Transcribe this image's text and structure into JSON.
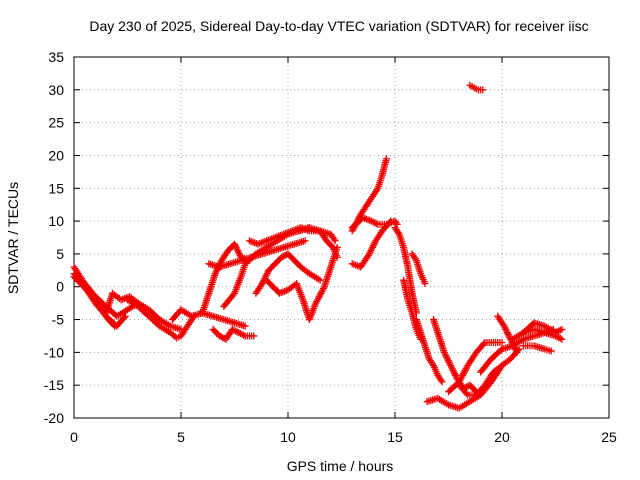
{
  "chart_data": {
    "type": "scatter",
    "title": "Day 230 of 2025, Sidereal Day-to-day VTEC variation (SDTVAR) for receiver iisc",
    "xlabel": "GPS time / hours",
    "ylabel": "SDTVAR / TECUs",
    "xlim": [
      0,
      25
    ],
    "ylim": [
      -20,
      35
    ],
    "x_ticks": [
      0,
      5,
      10,
      15,
      20,
      25
    ],
    "y_ticks": [
      -20,
      -15,
      -10,
      -5,
      0,
      5,
      10,
      15,
      20,
      25,
      30,
      35
    ],
    "x_tick_labels": [
      "0",
      "5",
      "10",
      "15",
      "20",
      "25"
    ],
    "y_tick_labels": [
      "-20",
      "-15",
      "-10",
      "-5",
      "0",
      "5",
      "10",
      "15",
      "20",
      "25",
      "30",
      "35"
    ],
    "grid": true,
    "marker": "+",
    "color": "#ee0000",
    "series": [
      {
        "x": [
          0.0,
          0.5,
          1.0,
          1.5,
          2.0,
          2.5,
          3.0
        ],
        "y": [
          3.0,
          0.5,
          -1.5,
          -3.0,
          -4.5,
          -3.5,
          -2.5
        ]
      },
      {
        "x": [
          0.0,
          0.5,
          1.0,
          1.5,
          2.0,
          2.4
        ],
        "y": [
          2.0,
          0.0,
          -2.5,
          -4.5,
          -6.0,
          -4.5
        ]
      },
      {
        "x": [
          0.0,
          0.6,
          1.2,
          1.6,
          1.9
        ],
        "y": [
          1.5,
          -0.5,
          -3.0,
          -5.0,
          -6.0
        ]
      },
      {
        "x": [
          1.5,
          1.8,
          2.2,
          2.6,
          3.0,
          3.5,
          4.0,
          4.5,
          5.0
        ],
        "y": [
          -4.0,
          -1.0,
          -2.0,
          -1.5,
          -2.5,
          -3.5,
          -5.0,
          -6.0,
          -6.5
        ]
      },
      {
        "x": [
          2.5,
          3.0,
          3.5,
          4.0,
          4.5,
          4.8,
          5.0,
          5.3,
          5.6
        ],
        "y": [
          -2.0,
          -3.0,
          -4.5,
          -6.0,
          -7.0,
          -7.8,
          -7.5,
          -6.0,
          -4.5
        ]
      },
      {
        "x": [
          4.6,
          5.0,
          5.5,
          6.0,
          6.5,
          7.0,
          7.5,
          8.0
        ],
        "y": [
          -5.0,
          -3.5,
          -4.5,
          -4.0,
          -4.5,
          -5.0,
          -5.5,
          -6.0
        ]
      },
      {
        "x": [
          6.5,
          6.8,
          7.1,
          7.4,
          7.7,
          8.0,
          8.4
        ],
        "y": [
          -6.5,
          -7.5,
          -8.0,
          -6.5,
          -7.0,
          -7.5,
          -7.5
        ]
      },
      {
        "x": [
          6.0,
          6.3,
          6.6,
          6.9,
          7.2,
          7.5,
          7.8,
          8.2
        ],
        "y": [
          -4.0,
          -1.0,
          2.0,
          4.0,
          5.5,
          6.5,
          4.5,
          4.0
        ]
      },
      {
        "x": [
          6.3,
          6.8,
          7.3,
          7.8,
          8.3,
          8.8,
          9.3,
          9.8,
          10.3,
          10.8
        ],
        "y": [
          3.5,
          3.0,
          3.5,
          4.0,
          4.5,
          5.0,
          5.5,
          6.0,
          6.5,
          7.0
        ]
      },
      {
        "x": [
          7.0,
          7.5,
          7.8,
          8.0,
          8.5,
          9.0,
          9.5,
          10.0,
          10.5,
          11.0
        ],
        "y": [
          -3.0,
          -1.0,
          1.5,
          3.5,
          5.0,
          6.0,
          7.0,
          8.0,
          8.5,
          9.0
        ]
      },
      {
        "x": [
          8.2,
          8.6,
          9.0,
          9.4,
          9.8,
          10.2,
          10.6,
          11.0,
          11.5,
          12.0,
          12.2
        ],
        "y": [
          7.0,
          6.5,
          7.0,
          7.5,
          8.0,
          8.5,
          9.0,
          8.5,
          8.5,
          8.0,
          7.0
        ]
      },
      {
        "x": [
          8.5,
          8.8,
          9.1,
          9.4,
          9.7,
          10.0,
          10.3,
          10.6,
          11.0,
          11.5
        ],
        "y": [
          -1.0,
          0.5,
          2.5,
          3.5,
          4.5,
          5.0,
          4.0,
          3.0,
          2.0,
          1.0
        ]
      },
      {
        "x": [
          9.0,
          9.3,
          9.6,
          10.0,
          10.4,
          10.7,
          11.0,
          11.3,
          11.7,
          12.1,
          12.3
        ],
        "y": [
          1.0,
          0.0,
          -1.0,
          -0.5,
          0.5,
          -2.0,
          -5.0,
          -2.5,
          0.0,
          4.0,
          6.0
        ]
      },
      {
        "x": [
          10.5,
          11.0,
          11.5,
          11.8,
          12.1,
          12.3
        ],
        "y": [
          8.5,
          9.0,
          8.5,
          7.0,
          6.0,
          4.5
        ]
      },
      {
        "x": [
          13.0,
          13.4,
          13.8,
          14.2,
          14.4,
          14.6
        ],
        "y": [
          8.5,
          11.0,
          13.0,
          15.0,
          17.0,
          19.5
        ]
      },
      {
        "x": [
          13.0,
          13.5,
          13.9,
          14.2,
          14.6,
          15.0,
          15.1
        ],
        "y": [
          9.0,
          10.5,
          10.0,
          9.5,
          9.5,
          10.0,
          9.5
        ]
      },
      {
        "x": [
          13.0,
          13.4,
          13.8,
          14.1,
          14.4,
          14.8
        ],
        "y": [
          3.5,
          3.0,
          5.0,
          7.0,
          8.5,
          10.0
        ]
      },
      {
        "x": [
          15.0,
          15.2,
          15.4,
          15.6,
          15.8,
          16.0
        ],
        "y": [
          9.0,
          8.0,
          6.0,
          3.0,
          -1.0,
          -4.0
        ]
      },
      {
        "x": [
          15.4,
          15.6,
          15.8,
          16.0,
          16.2
        ],
        "y": [
          1.0,
          -2.0,
          -4.0,
          -6.5,
          -8.0
        ]
      },
      {
        "x": [
          15.8,
          16.0,
          16.2,
          16.4
        ],
        "y": [
          5.0,
          4.0,
          2.0,
          0.5
        ]
      },
      {
        "x": [
          16.0,
          16.2,
          16.4,
          16.6,
          16.8,
          17.0,
          17.2
        ],
        "y": [
          -5.0,
          -7.0,
          -9.0,
          -11.0,
          -12.0,
          -13.5,
          -14.5
        ]
      },
      {
        "x": [
          16.8,
          17.0,
          17.3,
          17.6,
          17.9,
          18.2,
          18.5,
          18.8
        ],
        "y": [
          -5.0,
          -7.0,
          -10.0,
          -12.0,
          -14.0,
          -15.5,
          -15.0,
          -16.0
        ]
      },
      {
        "x": [
          16.5,
          17.0,
          17.5,
          18.0,
          18.5,
          19.0,
          19.5,
          20.0
        ],
        "y": [
          -17.5,
          -17.0,
          -18.0,
          -18.5,
          -17.5,
          -16.5,
          -14.5,
          -12.0
        ]
      },
      {
        "x": [
          17.5,
          18.0,
          18.4,
          18.8,
          19.2,
          19.6,
          20.0
        ],
        "y": [
          -16.0,
          -14.5,
          -12.0,
          -10.0,
          -8.5,
          -8.5,
          -8.5
        ]
      },
      {
        "x": [
          18.0,
          18.4,
          18.8,
          19.2,
          19.6,
          20.0,
          20.4,
          20.8
        ],
        "y": [
          -15.0,
          -16.5,
          -16.5,
          -15.0,
          -13.0,
          -12.0,
          -11.0,
          -9.5
        ]
      },
      {
        "x": [
          19.0,
          19.5,
          20.0,
          20.5,
          21.0,
          21.5,
          22.0,
          22.4
        ],
        "y": [
          -13.0,
          -11.0,
          -9.5,
          -9.0,
          -8.0,
          -7.5,
          -7.0,
          -6.5
        ]
      },
      {
        "x": [
          19.8,
          20.1,
          20.4,
          20.7
        ],
        "y": [
          -4.5,
          -6.0,
          -8.0,
          -10.0
        ]
      },
      {
        "x": [
          20.5,
          21.0,
          21.5,
          22.0,
          22.5,
          22.8
        ],
        "y": [
          -8.0,
          -7.0,
          -5.5,
          -6.0,
          -7.0,
          -6.5
        ]
      },
      {
        "x": [
          21.0,
          21.5,
          22.0,
          22.3
        ],
        "y": [
          -9.0,
          -9.0,
          -9.5,
          -9.8
        ]
      },
      {
        "x": [
          21.0,
          21.5,
          22.0,
          22.5,
          22.8
        ],
        "y": [
          -7.0,
          -6.5,
          -7.0,
          -7.5,
          -8.0
        ]
      },
      {
        "x": [
          18.5,
          18.7,
          18.9,
          19.1
        ],
        "y": [
          30.7,
          30.3,
          30.0,
          30.0
        ]
      }
    ]
  }
}
